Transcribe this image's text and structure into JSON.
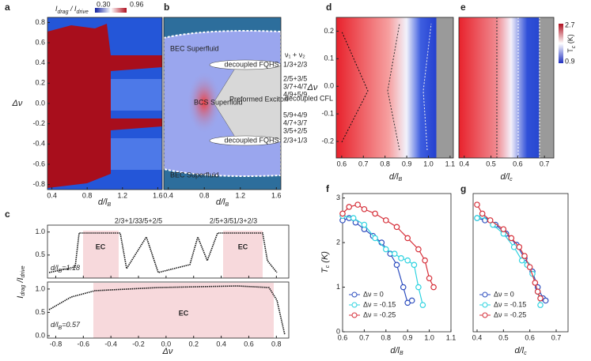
{
  "panels": {
    "a": {
      "letter": "a",
      "colorbar_label": [
        "I",
        "drag",
        " / I",
        "drive"
      ],
      "colorbar_ticks": [
        {
          "value": 0.3,
          "label": "0.30"
        },
        0.96
      ],
      "xlabel": [
        "d/l",
        "B"
      ],
      "ylabel": [
        "Δν"
      ],
      "xlim": [
        0.35,
        1.65
      ],
      "ylim": [
        -0.85,
        0.85
      ],
      "xticks": [
        0.4,
        0.8,
        1.2,
        1.6
      ],
      "yticks": [
        0.8,
        0.6,
        0.4,
        0.2,
        {
          "value": 0,
          "label": "0.0"
        },
        -0.2,
        -0.4,
        -0.6,
        -0.8
      ]
    },
    "b": {
      "letter": "b",
      "xlabel": [
        "d/l",
        "B"
      ],
      "xlim": [
        0.35,
        1.65
      ],
      "xticks": [
        0.4,
        0.8,
        1.2,
        1.6
      ],
      "regions": [
        "BEC Superfluid",
        "decoupled FQHS",
        "BCS Superfluid",
        "Preformed Exciton",
        "decoupled CFL",
        "decoupled FQHS",
        "BEC Superfluid"
      ],
      "fillings_title": "ν₁ + ν₂",
      "fillings": [
        "1/3+2/3",
        "2/5+3/5",
        "3/7+4/7",
        "4/9+5/9",
        "5/9+4/9",
        "4/7+3/7",
        "3/5+2/5",
        "2/3+1/3"
      ]
    },
    "c": {
      "letter": "c",
      "xlabel": [
        "Δν"
      ],
      "ylabel": [
        "I",
        "drag",
        " /I",
        "drive"
      ],
      "xlim": [
        -0.86,
        0.89
      ],
      "xticks": [
        -0.8,
        -0.6,
        -0.4,
        -0.2,
        {
          "value": 0,
          "label": "0.0"
        },
        0.2,
        0.4,
        0.6,
        0.8
      ],
      "top_labels": [
        "2/3+1/3",
        "3/5+2/5",
        "2/5+3/5",
        "1/3+2/3"
      ],
      "top": {
        "ylim": [
          0,
          1.15
        ],
        "yticks": [
          {
            "value": 1,
            "label": "1.0"
          },
          0.5
        ],
        "ratio": [
          "d/l",
          "B",
          "=1.18"
        ],
        "ec": [
          "EC",
          "EC"
        ]
      },
      "bottom": {
        "ylim": [
          -0.05,
          1.15
        ],
        "yticks": [
          {
            "value": 1,
            "label": "1.0"
          },
          0.5,
          {
            "value": 0,
            "label": "0.0"
          }
        ],
        "ratio": [
          "d/l",
          "B",
          "=0.57"
        ],
        "ec": [
          "EC"
        ]
      }
    },
    "d": {
      "letter": "d",
      "xlabel": [
        "d/l",
        "B"
      ],
      "ylabel": [
        "Δν"
      ],
      "xlim": [
        0.575,
        1.115
      ],
      "ylim": [
        -0.26,
        0.25
      ],
      "xticks": [
        0.6,
        0.7,
        0.8,
        0.9,
        {
          "value": 1,
          "label": "1.0"
        },
        1.1
      ],
      "yticks": [
        0.2,
        0.1,
        {
          "value": 0,
          "label": "0.0"
        },
        -0.1,
        -0.2
      ]
    },
    "e": {
      "letter": "e",
      "xlabel": [
        "d/l",
        "c"
      ],
      "xlim": [
        0.38,
        0.735
      ],
      "ylim": [
        -0.26,
        0.25
      ],
      "xticks": [
        0.4,
        0.5,
        0.6,
        0.7
      ],
      "colorbar_label": [
        "T",
        "c",
        " (K)"
      ],
      "colorbar_ticks": [
        2.7,
        0.9
      ]
    }
  },
  "chart_data": [
    {
      "type": "line",
      "panel_label": "f",
      "x_label": [
        "d/l",
        "B"
      ],
      "y_label": [
        "T",
        "c",
        " (K)"
      ],
      "xlim": [
        0.6,
        1.1
      ],
      "ylim": [
        0,
        3.1
      ],
      "xticks": [
        0.6,
        0.7,
        0.8,
        0.9,
        {
          "value": 1,
          "label": "1.0"
        },
        1.1
      ],
      "yticks": [
        0,
        1,
        2,
        3
      ],
      "series": [
        {
          "name": "Δν = 0",
          "color": "#2f4fbf",
          "x": [
            0.6,
            0.63,
            0.66,
            0.7,
            0.74,
            0.78,
            0.82,
            0.85,
            0.88,
            0.9,
            0.92
          ],
          "values": [
            2.5,
            2.55,
            2.45,
            2.3,
            2.15,
            2.0,
            1.75,
            1.5,
            1.0,
            0.65,
            0.7
          ]
        },
        {
          "name": "Δν = -0.15",
          "color": "#2fd3e0",
          "x": [
            0.6,
            0.65,
            0.7,
            0.75,
            0.8,
            0.84,
            0.87,
            0.9,
            0.93,
            0.95,
            0.97
          ],
          "values": [
            2.6,
            2.55,
            2.4,
            2.1,
            1.85,
            1.75,
            1.65,
            1.6,
            1.5,
            1.0,
            0.6
          ]
        },
        {
          "name": "Δν = -0.25",
          "color": "#d6303a",
          "x": [
            0.6,
            0.63,
            0.67,
            0.7,
            0.75,
            0.8,
            0.85,
            0.9,
            0.95,
            0.98,
            1.0,
            1.02
          ],
          "values": [
            2.65,
            2.8,
            2.85,
            2.75,
            2.65,
            2.5,
            2.35,
            2.1,
            1.85,
            1.6,
            1.2,
            1.0
          ]
        }
      ]
    },
    {
      "type": "line",
      "panel_label": "g",
      "x_label": [
        "d/l",
        "c"
      ],
      "xlim": [
        0.385,
        0.745
      ],
      "ylim": [
        0,
        3.1
      ],
      "xticks": [
        0.4,
        0.5,
        0.6,
        0.7
      ],
      "series": [
        {
          "name": "Δν = 0",
          "color": "#2f4fbf",
          "x": [
            0.4,
            0.43,
            0.47,
            0.51,
            0.55,
            0.58,
            0.61,
            0.63,
            0.65,
            0.66
          ],
          "values": [
            2.55,
            2.5,
            2.4,
            2.2,
            1.95,
            1.65,
            1.35,
            1.0,
            0.75,
            0.7
          ]
        },
        {
          "name": "Δν = -0.15",
          "color": "#2fd3e0",
          "x": [
            0.4,
            0.42,
            0.46,
            0.5,
            0.54,
            0.57,
            0.59,
            0.61,
            0.63,
            0.64
          ],
          "values": [
            2.55,
            2.6,
            2.4,
            2.2,
            1.9,
            1.6,
            1.5,
            1.3,
            0.9,
            0.6
          ]
        },
        {
          "name": "Δν = -0.25",
          "color": "#d6303a",
          "x": [
            0.4,
            0.42,
            0.45,
            0.5,
            0.53,
            0.56,
            0.58,
            0.6,
            0.62,
            0.63,
            0.64
          ],
          "values": [
            2.85,
            2.65,
            2.5,
            2.3,
            2.1,
            1.9,
            1.7,
            1.45,
            1.1,
            0.9,
            0.75
          ]
        }
      ]
    }
  ]
}
